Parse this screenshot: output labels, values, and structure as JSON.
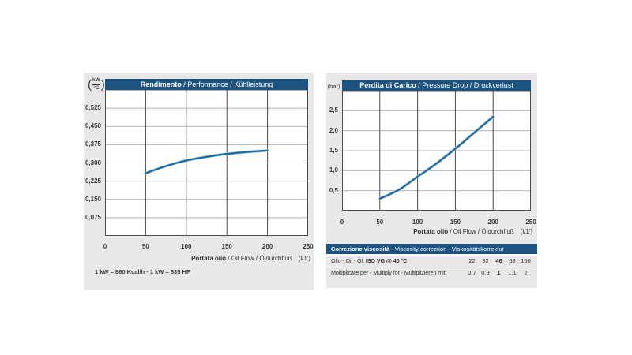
{
  "colors": {
    "page_bg": "#ffffff",
    "panel_bg": "#e8e8e8",
    "header_bg": "#1d5380",
    "header_text": "#ffffff",
    "curve": "#1d6a9c",
    "curve_halo": "#a9cbdf",
    "grid_h": "#b4b4b4",
    "grid_v": "#4a4a4a",
    "text": "#333333"
  },
  "chart_data": [
    {
      "type": "line",
      "title_bold": "Rendimento",
      "title_rest": " / Performance / Kühlleistung",
      "unit_num": "kW",
      "unit_den": "°C",
      "xlabel_bold": "Portata olio",
      "xlabel_rest": " / Oil Flow / Öldurchfluß",
      "xlabel_unit": "(l/1')",
      "footnote": "1 kW = 860 Kcal/h  ·  1 kW = 635 HP",
      "xlim": [
        0,
        250
      ],
      "ylim": [
        0,
        0.6
      ],
      "x": [
        50,
        75,
        100,
        125,
        150,
        175,
        200
      ],
      "y": [
        0.258,
        0.287,
        0.31,
        0.325,
        0.337,
        0.345,
        0.351
      ],
      "x_ticks": [
        {
          "v": 0,
          "label": "0"
        },
        {
          "v": 50,
          "label": "50"
        },
        {
          "v": 100,
          "label": "100"
        },
        {
          "v": 150,
          "label": "150"
        },
        {
          "v": 200,
          "label": "200"
        },
        {
          "v": 250,
          "label": "250"
        }
      ],
      "y_ticks": [
        {
          "v": 0.525,
          "label": "0,525"
        },
        {
          "v": 0.45,
          "label": "0,450"
        },
        {
          "v": 0.375,
          "label": "0,375"
        },
        {
          "v": 0.3,
          "label": "0,300"
        },
        {
          "v": 0.225,
          "label": "0,225"
        },
        {
          "v": 0.15,
          "label": "0,150"
        },
        {
          "v": 0.075,
          "label": "0,075"
        }
      ],
      "grid": true,
      "legend": false
    },
    {
      "type": "line",
      "title_bold": "Perdita di Carico",
      "title_rest": " / Pressure Drop / Druckverlust",
      "unit": "(bar)",
      "xlabel_bold": "Portata olio",
      "xlabel_rest": " / Oil Flow / Öldurchfluß",
      "xlabel_unit": "(l/1')",
      "xlim": [
        0,
        250
      ],
      "ylim": [
        0,
        3
      ],
      "x": [
        50,
        75,
        100,
        125,
        150,
        175,
        200
      ],
      "y": [
        0.3,
        0.52,
        0.85,
        1.18,
        1.55,
        1.95,
        2.35
      ],
      "x_ticks": [
        {
          "v": 0,
          "label": "0"
        },
        {
          "v": 50,
          "label": "50"
        },
        {
          "v": 100,
          "label": "100"
        },
        {
          "v": 150,
          "label": "150"
        },
        {
          "v": 200,
          "label": "200"
        },
        {
          "v": 250,
          "label": "250"
        }
      ],
      "y_ticks": [
        {
          "v": 2.5,
          "label": "2,5"
        },
        {
          "v": 2,
          "label": "2,0"
        },
        {
          "v": 1.5,
          "label": "1,5"
        },
        {
          "v": 1,
          "label": "1,0"
        },
        {
          "v": 0.5,
          "label": "0,5"
        }
      ],
      "grid": true,
      "legend": false
    }
  ],
  "viscosity_table": {
    "header_bold": "Correzione viscosità",
    "header_rest": "  -  Viscosity correction  -  Viskositätskorrektur",
    "row1_label_prefix": "Olio - Oil - Öl: ",
    "row1_label_bold": "ISO VG @ 40 °C",
    "row1_values": [
      "22",
      "32",
      "46",
      "68",
      "150"
    ],
    "row2_label": "Moltiplicare per - Multiply for - Multiplizieren mit:",
    "row2_values": [
      "0,7",
      "0,9",
      "1",
      "1,1",
      "2"
    ]
  }
}
